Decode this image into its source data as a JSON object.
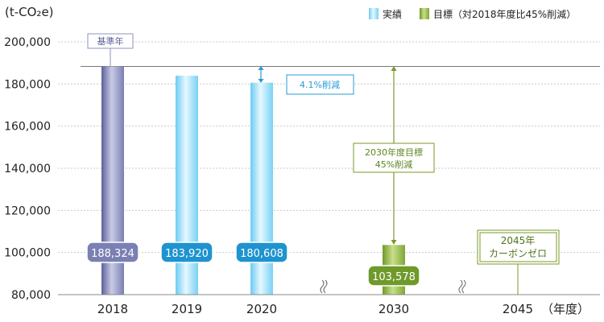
{
  "chart_data": {
    "type": "bar",
    "y_unit_label": "(t-CO₂e)",
    "ylim": [
      80000,
      200000
    ],
    "y_ticks": [
      "80,000",
      "100,000",
      "120,000",
      "140,000",
      "160,000",
      "180,000",
      "200,000"
    ],
    "y_tick_values": [
      80000,
      100000,
      120000,
      140000,
      160000,
      180000,
      200000
    ],
    "categories": [
      "2018",
      "2019",
      "2020",
      "2030",
      "2045"
    ],
    "x_unit_label": "（年度）",
    "series": [
      {
        "name": "実績",
        "color": "#8fd8f5",
        "points": [
          {
            "category": "2018",
            "value": 188324,
            "label": "188,324"
          },
          {
            "category": "2019",
            "value": 183920,
            "label": "183,920"
          },
          {
            "category": "2020",
            "value": 180608,
            "label": "180,608"
          }
        ]
      },
      {
        "name": "目標（対2018年度比45%削減）",
        "color": "#8aae3c",
        "points": [
          {
            "category": "2030",
            "value": 103578,
            "label": "103,578"
          }
        ]
      }
    ],
    "legend_position": "top-right",
    "annotations": {
      "base_year_label": "基準年",
      "reduction_2020": "4.1%削減",
      "target_2030_line1": "2030年度目標",
      "target_2030_line2": "45%削減",
      "zero_2045_line1": "2045年",
      "zero_2045_line2": "カーボンゼロ"
    },
    "colors": {
      "base_bar": "#8d93bf",
      "actual_bar": "#8fd8f5",
      "target_bar": "#8aae3c",
      "label_2018": "#7a80b3",
      "label_actual": "#1f93cf",
      "label_target": "#6f9a2a",
      "target_line": "#7a9a2a",
      "reduction_blue": "#2a9ad6"
    }
  }
}
